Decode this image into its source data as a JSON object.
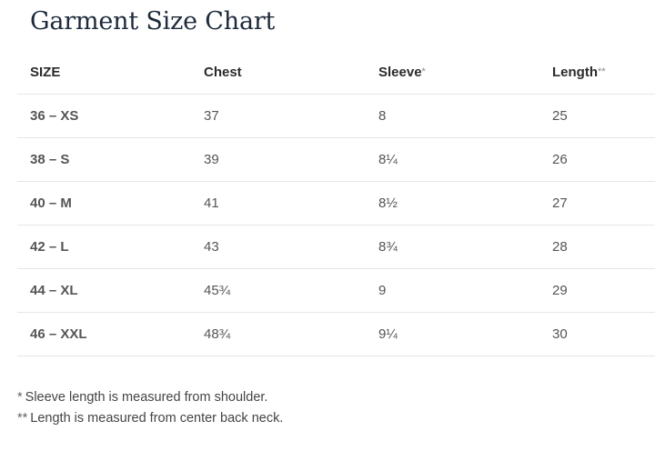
{
  "title": "Garment Size Chart",
  "table": {
    "headers": [
      {
        "label": "SIZE",
        "mark": ""
      },
      {
        "label": "Chest",
        "mark": ""
      },
      {
        "label": "Sleeve",
        "mark": "*"
      },
      {
        "label": "Length",
        "mark": "**"
      }
    ],
    "rows": [
      [
        "36 – XS",
        "37",
        "8",
        "25"
      ],
      [
        "38 – S",
        "39",
        "8¼",
        "26"
      ],
      [
        "40 – M",
        "41",
        "8½",
        "27"
      ],
      [
        "42 – L",
        "43",
        "8¾",
        "28"
      ],
      [
        "44 – XL",
        "45¾",
        "9",
        "29"
      ],
      [
        "46 – XXL",
        "48¾",
        "9¼",
        "30"
      ]
    ]
  },
  "notes": [
    {
      "mark": "*",
      "text": "Sleeve length is measured from shoulder."
    },
    {
      "mark": "**",
      "text": "Length is measured from center back neck."
    }
  ]
}
